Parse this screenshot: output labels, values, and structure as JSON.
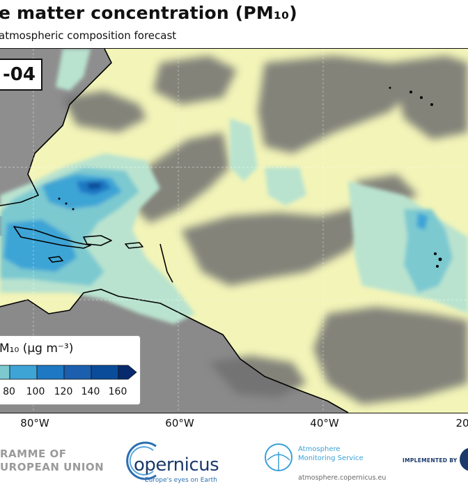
{
  "header": {
    "title": "e matter concentration (PM₁₀)",
    "subtitle": "atmospheric composition forecast"
  },
  "map": {
    "date_label": "-04",
    "colors": {
      "background_low": "#f2f4b8",
      "level_1": "#b9e3cf",
      "level_2": "#7cc9d0",
      "level_3": "#3ea4d6",
      "level_4": "#1e78c2",
      "level_5": "#0b4c9a",
      "level_6": "#072a6e",
      "land": "#8a8a8a",
      "clouds": "#707070",
      "coastline": "#000000"
    },
    "longitude_labels": [
      "80°W",
      "60°W",
      "40°W",
      "20"
    ]
  },
  "legend": {
    "title": "M₁₀ (μg m⁻³)",
    "ticks": [
      "80",
      "100",
      "120",
      "140",
      "160"
    ],
    "colors": [
      "#7cc9d0",
      "#3ea4d6",
      "#1e78c2",
      "#1b5fae",
      "#0b4c9a",
      "#072a6e"
    ]
  },
  "footer": {
    "programme_line1": "RAMME OF",
    "programme_line2": "UROPEAN UNION",
    "copernicus_word": "opernicus",
    "copernicus_tagline": "Europe's eyes on Earth",
    "cams_name_line1": "Atmosphere",
    "cams_name_line2": "Monitoring Service",
    "cams_url": "atmosphere.copernicus.eu",
    "implemented_by": "IMPLEMENTED BY"
  }
}
